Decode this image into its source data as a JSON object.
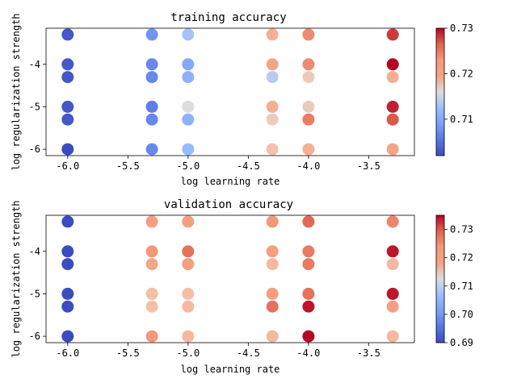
{
  "chart_data": [
    {
      "type": "scatter",
      "title": "training accuracy",
      "xlabel": "log learning rate",
      "ylabel": "log regularization strength",
      "xlim": [
        -6.18,
        -3.12
      ],
      "ylim": [
        -6.15,
        -3.15
      ],
      "xticks": [
        -6.0,
        -5.5,
        -5.0,
        -4.5,
        -4.0,
        -3.5
      ],
      "xtick_labels": [
        "-6.0",
        "-5.5",
        "-5.0",
        "-4.5",
        "-4.0",
        "-3.5"
      ],
      "yticks": [
        -6,
        -5,
        -4
      ],
      "ytick_labels": [
        "-6",
        "-5",
        "-4"
      ],
      "x_values": [
        -6.0,
        -5.3,
        -5.0,
        -4.3,
        -4.0,
        -3.3
      ],
      "y_values": [
        -3.3,
        -4.0,
        -4.3,
        -5.0,
        -5.3,
        -6.0
      ],
      "grid": false,
      "colormap": "coolwarm",
      "colorbar": {
        "min": 0.702,
        "max": 0.73,
        "ticks": [
          0.71,
          0.72,
          0.73
        ],
        "tick_labels": [
          "0.71",
          "0.72",
          "0.73"
        ]
      },
      "points": [
        {
          "x": -6.0,
          "y": -3.3,
          "value": 0.703
        },
        {
          "x": -6.0,
          "y": -4.0,
          "value": 0.703
        },
        {
          "x": -6.0,
          "y": -4.3,
          "value": 0.703
        },
        {
          "x": -6.0,
          "y": -5.0,
          "value": 0.703
        },
        {
          "x": -6.0,
          "y": -5.3,
          "value": 0.703
        },
        {
          "x": -6.0,
          "y": -6.0,
          "value": 0.702
        },
        {
          "x": -5.3,
          "y": -3.3,
          "value": 0.708
        },
        {
          "x": -5.3,
          "y": -4.0,
          "value": 0.707
        },
        {
          "x": -5.3,
          "y": -4.3,
          "value": 0.707
        },
        {
          "x": -5.3,
          "y": -5.0,
          "value": 0.706
        },
        {
          "x": -5.3,
          "y": -5.3,
          "value": 0.707
        },
        {
          "x": -5.3,
          "y": -6.0,
          "value": 0.707
        },
        {
          "x": -5.0,
          "y": -3.3,
          "value": 0.713
        },
        {
          "x": -5.0,
          "y": -4.0,
          "value": 0.71
        },
        {
          "x": -5.0,
          "y": -4.3,
          "value": 0.711
        },
        {
          "x": -5.0,
          "y": -5.0,
          "value": 0.716
        },
        {
          "x": -5.0,
          "y": -5.3,
          "value": 0.711
        },
        {
          "x": -5.0,
          "y": -6.0,
          "value": 0.712
        },
        {
          "x": -4.3,
          "y": -3.3,
          "value": 0.721
        },
        {
          "x": -4.3,
          "y": -4.0,
          "value": 0.722
        },
        {
          "x": -4.3,
          "y": -4.3,
          "value": 0.714
        },
        {
          "x": -4.3,
          "y": -5.0,
          "value": 0.721
        },
        {
          "x": -4.3,
          "y": -5.3,
          "value": 0.718
        },
        {
          "x": -4.3,
          "y": -6.0,
          "value": 0.719
        },
        {
          "x": -4.0,
          "y": -3.3,
          "value": 0.724
        },
        {
          "x": -4.0,
          "y": -4.0,
          "value": 0.724
        },
        {
          "x": -4.0,
          "y": -4.3,
          "value": 0.718
        },
        {
          "x": -4.0,
          "y": -5.0,
          "value": 0.718
        },
        {
          "x": -4.0,
          "y": -5.3,
          "value": 0.725
        },
        {
          "x": -4.0,
          "y": -6.0,
          "value": 0.721
        },
        {
          "x": -3.3,
          "y": -3.3,
          "value": 0.728
        },
        {
          "x": -3.3,
          "y": -4.0,
          "value": 0.73
        },
        {
          "x": -3.3,
          "y": -4.3,
          "value": 0.721
        },
        {
          "x": -3.3,
          "y": -5.0,
          "value": 0.729
        },
        {
          "x": -3.3,
          "y": -5.3,
          "value": 0.727
        },
        {
          "x": -3.3,
          "y": -6.0,
          "value": 0.722
        }
      ]
    },
    {
      "type": "scatter",
      "title": "validation accuracy",
      "xlabel": "log learning rate",
      "ylabel": "log regularization strength",
      "xlim": [
        -6.18,
        -3.12
      ],
      "ylim": [
        -6.15,
        -3.15
      ],
      "xticks": [
        -6.0,
        -5.5,
        -5.0,
        -4.5,
        -4.0,
        -3.5
      ],
      "xtick_labels": [
        "-6.0",
        "-5.5",
        "-5.0",
        "-4.5",
        "-4.0",
        "-3.5"
      ],
      "yticks": [
        -6,
        -5,
        -4
      ],
      "ytick_labels": [
        "-6",
        "-5",
        "-4"
      ],
      "x_values": [
        -6.0,
        -5.3,
        -5.0,
        -4.3,
        -4.0,
        -3.3
      ],
      "y_values": [
        -3.3,
        -4.0,
        -4.3,
        -5.0,
        -5.3,
        -6.0
      ],
      "grid": false,
      "colormap": "coolwarm",
      "colorbar": {
        "min": 0.69,
        "max": 0.735,
        "ticks": [
          0.69,
          0.7,
          0.71,
          0.72,
          0.73
        ],
        "tick_labels": [
          "0.69",
          "0.70",
          "0.71",
          "0.72",
          "0.73"
        ]
      },
      "points": [
        {
          "x": -6.0,
          "y": -3.3,
          "value": 0.69
        },
        {
          "x": -6.0,
          "y": -4.0,
          "value": 0.69
        },
        {
          "x": -6.0,
          "y": -4.3,
          "value": 0.69
        },
        {
          "x": -6.0,
          "y": -5.0,
          "value": 0.69
        },
        {
          "x": -6.0,
          "y": -5.3,
          "value": 0.69
        },
        {
          "x": -6.0,
          "y": -6.0,
          "value": 0.69
        },
        {
          "x": -5.3,
          "y": -3.3,
          "value": 0.723
        },
        {
          "x": -5.3,
          "y": -4.0,
          "value": 0.724
        },
        {
          "x": -5.3,
          "y": -4.3,
          "value": 0.722
        },
        {
          "x": -5.3,
          "y": -5.0,
          "value": 0.718
        },
        {
          "x": -5.3,
          "y": -5.3,
          "value": 0.718
        },
        {
          "x": -5.3,
          "y": -6.0,
          "value": 0.724
        },
        {
          "x": -5.0,
          "y": -3.3,
          "value": 0.723
        },
        {
          "x": -5.0,
          "y": -4.0,
          "value": 0.728
        },
        {
          "x": -5.0,
          "y": -4.3,
          "value": 0.723
        },
        {
          "x": -5.0,
          "y": -5.0,
          "value": 0.718
        },
        {
          "x": -5.0,
          "y": -5.3,
          "value": 0.719
        },
        {
          "x": -5.0,
          "y": -6.0,
          "value": 0.719
        },
        {
          "x": -4.3,
          "y": -3.3,
          "value": 0.724
        },
        {
          "x": -4.3,
          "y": -4.0,
          "value": 0.723
        },
        {
          "x": -4.3,
          "y": -4.3,
          "value": 0.719
        },
        {
          "x": -4.3,
          "y": -5.0,
          "value": 0.723
        },
        {
          "x": -4.3,
          "y": -5.3,
          "value": 0.728
        },
        {
          "x": -4.3,
          "y": -6.0,
          "value": 0.719
        },
        {
          "x": -4.0,
          "y": -3.3,
          "value": 0.729
        },
        {
          "x": -4.0,
          "y": -4.0,
          "value": 0.727
        },
        {
          "x": -4.0,
          "y": -4.3,
          "value": 0.727
        },
        {
          "x": -4.0,
          "y": -5.0,
          "value": 0.728
        },
        {
          "x": -4.0,
          "y": -5.3,
          "value": 0.734
        },
        {
          "x": -4.0,
          "y": -6.0,
          "value": 0.735
        },
        {
          "x": -3.3,
          "y": -3.3,
          "value": 0.726
        },
        {
          "x": -3.3,
          "y": -4.0,
          "value": 0.734
        },
        {
          "x": -3.3,
          "y": -4.3,
          "value": 0.719
        },
        {
          "x": -3.3,
          "y": -5.0,
          "value": 0.734
        },
        {
          "x": -3.3,
          "y": -5.3,
          "value": 0.723
        },
        {
          "x": -3.3,
          "y": -6.0,
          "value": 0.719
        }
      ]
    }
  ]
}
